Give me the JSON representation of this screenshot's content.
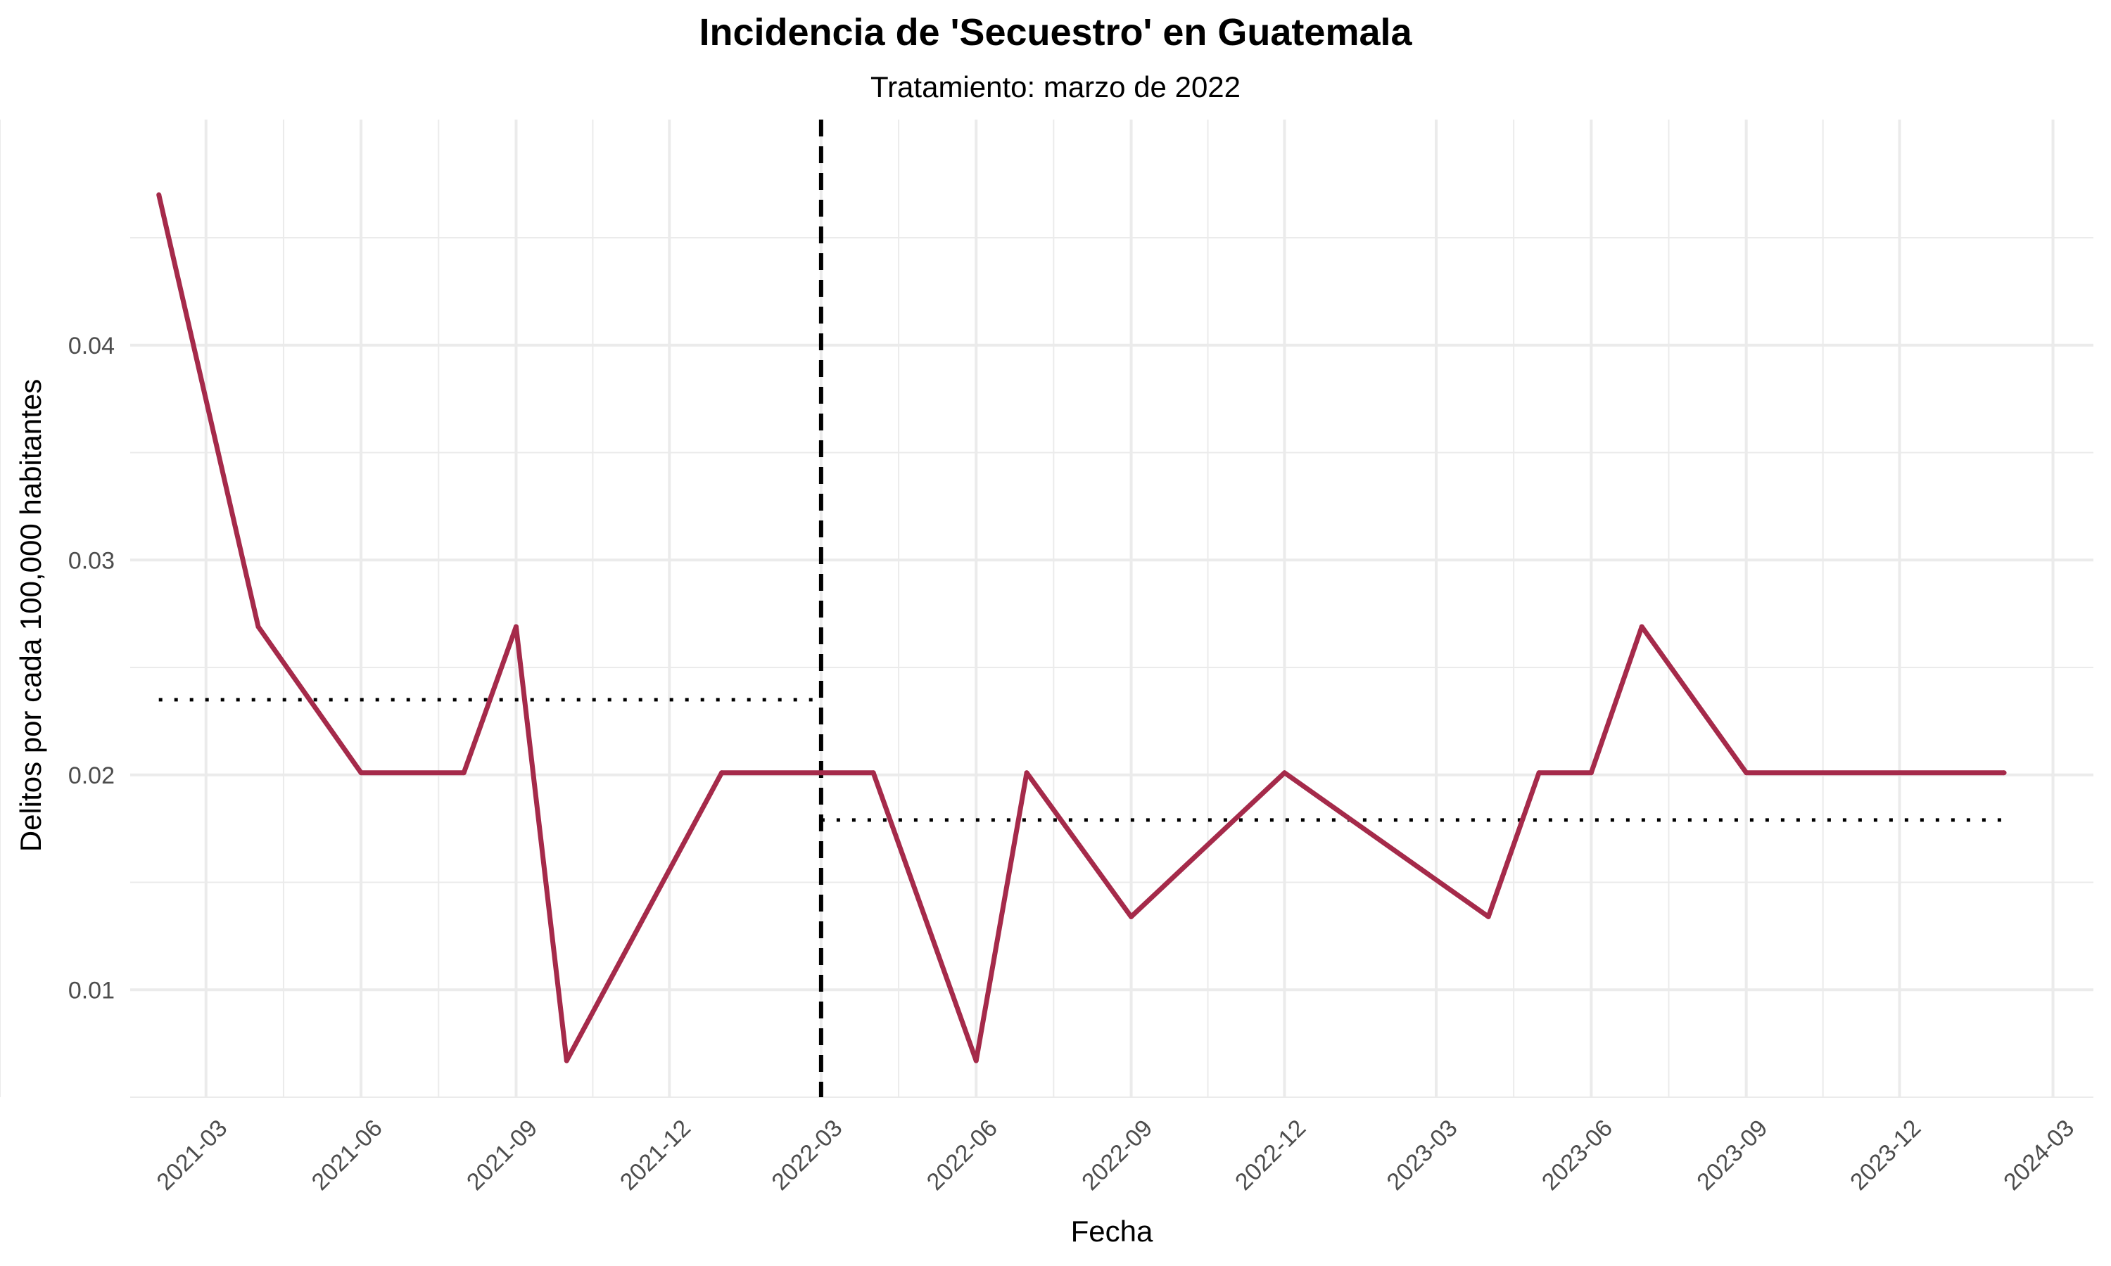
{
  "chart_data": {
    "type": "line",
    "title": "Incidencia de 'Secuestro' en Guatemala",
    "subtitle": "Tratamiento: marzo de 2022",
    "xlabel": "Fecha",
    "ylabel": "Delitos por cada 100,000 habitantes",
    "x_tick_labels": [
      "2021-03",
      "2021-06",
      "2021-09",
      "2021-12",
      "2022-03",
      "2022-06",
      "2022-09",
      "2022-12",
      "2023-03",
      "2023-06",
      "2023-09",
      "2023-12",
      "2024-03"
    ],
    "y_tick_labels": [
      "0.01",
      "0.02",
      "0.03",
      "0.04"
    ],
    "ylim": [
      0.005,
      0.0505
    ],
    "xlim": [
      "2021-01-15",
      "2024-03-25"
    ],
    "grid": true,
    "series": [
      {
        "color": "#A52A4A",
        "points": [
          {
            "x": "2021-02-01",
            "y": 0.047
          },
          {
            "x": "2021-04-01",
            "y": 0.0269
          },
          {
            "x": "2021-06-01",
            "y": 0.0201
          },
          {
            "x": "2021-08-01",
            "y": 0.0201
          },
          {
            "x": "2021-09-01",
            "y": 0.0269
          },
          {
            "x": "2021-10-01",
            "y": 0.0067
          },
          {
            "x": "2022-01-01",
            "y": 0.0201
          },
          {
            "x": "2022-04-01",
            "y": 0.0201
          },
          {
            "x": "2022-06-01",
            "y": 0.0067
          },
          {
            "x": "2022-07-01",
            "y": 0.0201
          },
          {
            "x": "2022-09-01",
            "y": 0.0134
          },
          {
            "x": "2022-12-01",
            "y": 0.0201
          },
          {
            "x": "2023-04-01",
            "y": 0.0134
          },
          {
            "x": "2023-05-01",
            "y": 0.0201
          },
          {
            "x": "2023-06-01",
            "y": 0.0201
          },
          {
            "x": "2023-07-01",
            "y": 0.0269
          },
          {
            "x": "2023-09-01",
            "y": 0.0201
          },
          {
            "x": "2024-02-01",
            "y": 0.0201
          }
        ]
      }
    ],
    "treatment_line": {
      "x": "2022-03-01",
      "style": "dashed",
      "color": "#000000"
    },
    "mean_lines": [
      {
        "x_start": "2021-02-01",
        "x_end": "2022-03-01",
        "y": 0.0235,
        "style": "dotted",
        "color": "#000000"
      },
      {
        "x_start": "2022-03-01",
        "x_end": "2024-02-01",
        "y": 0.0179,
        "style": "dotted",
        "color": "#000000"
      }
    ]
  }
}
